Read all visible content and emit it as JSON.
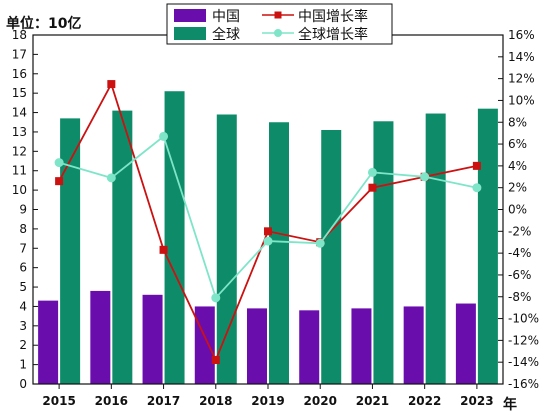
{
  "chart_data": {
    "type": "bar",
    "unit_label": "单位：10亿",
    "x_suffix": "年",
    "categories": [
      "2015",
      "2016",
      "2017",
      "2018",
      "2019",
      "2020",
      "2021",
      "2022",
      "2023"
    ],
    "series": [
      {
        "name": "中国",
        "kind": "bar",
        "axis": "left",
        "color": "#6a0dad",
        "values": [
          4.3,
          4.8,
          4.6,
          4.0,
          3.9,
          3.8,
          3.9,
          4.0,
          4.15
        ]
      },
      {
        "name": "全球",
        "kind": "bar",
        "axis": "left",
        "color": "#0e8c6a",
        "values": [
          13.7,
          14.1,
          15.1,
          13.9,
          13.5,
          13.1,
          13.55,
          13.95,
          14.2
        ]
      },
      {
        "name": "中国增长率",
        "kind": "line",
        "axis": "right",
        "color": "#cc1111",
        "marker": "square",
        "values": [
          2.6,
          11.5,
          -3.7,
          -13.8,
          -2.0,
          -3.0,
          2.0,
          3.0,
          4.0
        ]
      },
      {
        "name": "全球增长率",
        "kind": "line",
        "axis": "right",
        "color": "#7fe5c8",
        "marker": "circle",
        "values": [
          4.3,
          2.9,
          6.7,
          -8.1,
          -2.9,
          -3.1,
          3.4,
          3.0,
          2.0
        ]
      }
    ],
    "y_left": {
      "min": 0,
      "max": 18,
      "step": 1,
      "ticks": [
        "0",
        "1",
        "2",
        "3",
        "4",
        "5",
        "6",
        "7",
        "8",
        "9",
        "10",
        "11",
        "12",
        "13",
        "14",
        "15",
        "16",
        "17",
        "18"
      ]
    },
    "y_right": {
      "min": -16,
      "max": 16,
      "step": 2,
      "ticks": [
        "-16%",
        "-14%",
        "-12%",
        "-10%",
        "-8%",
        "-6%",
        "-4%",
        "-2%",
        "0%",
        "2%",
        "4%",
        "6%",
        "8%",
        "10%",
        "12%",
        "14%",
        "16%"
      ]
    },
    "grid": false,
    "legend_position": "top"
  }
}
